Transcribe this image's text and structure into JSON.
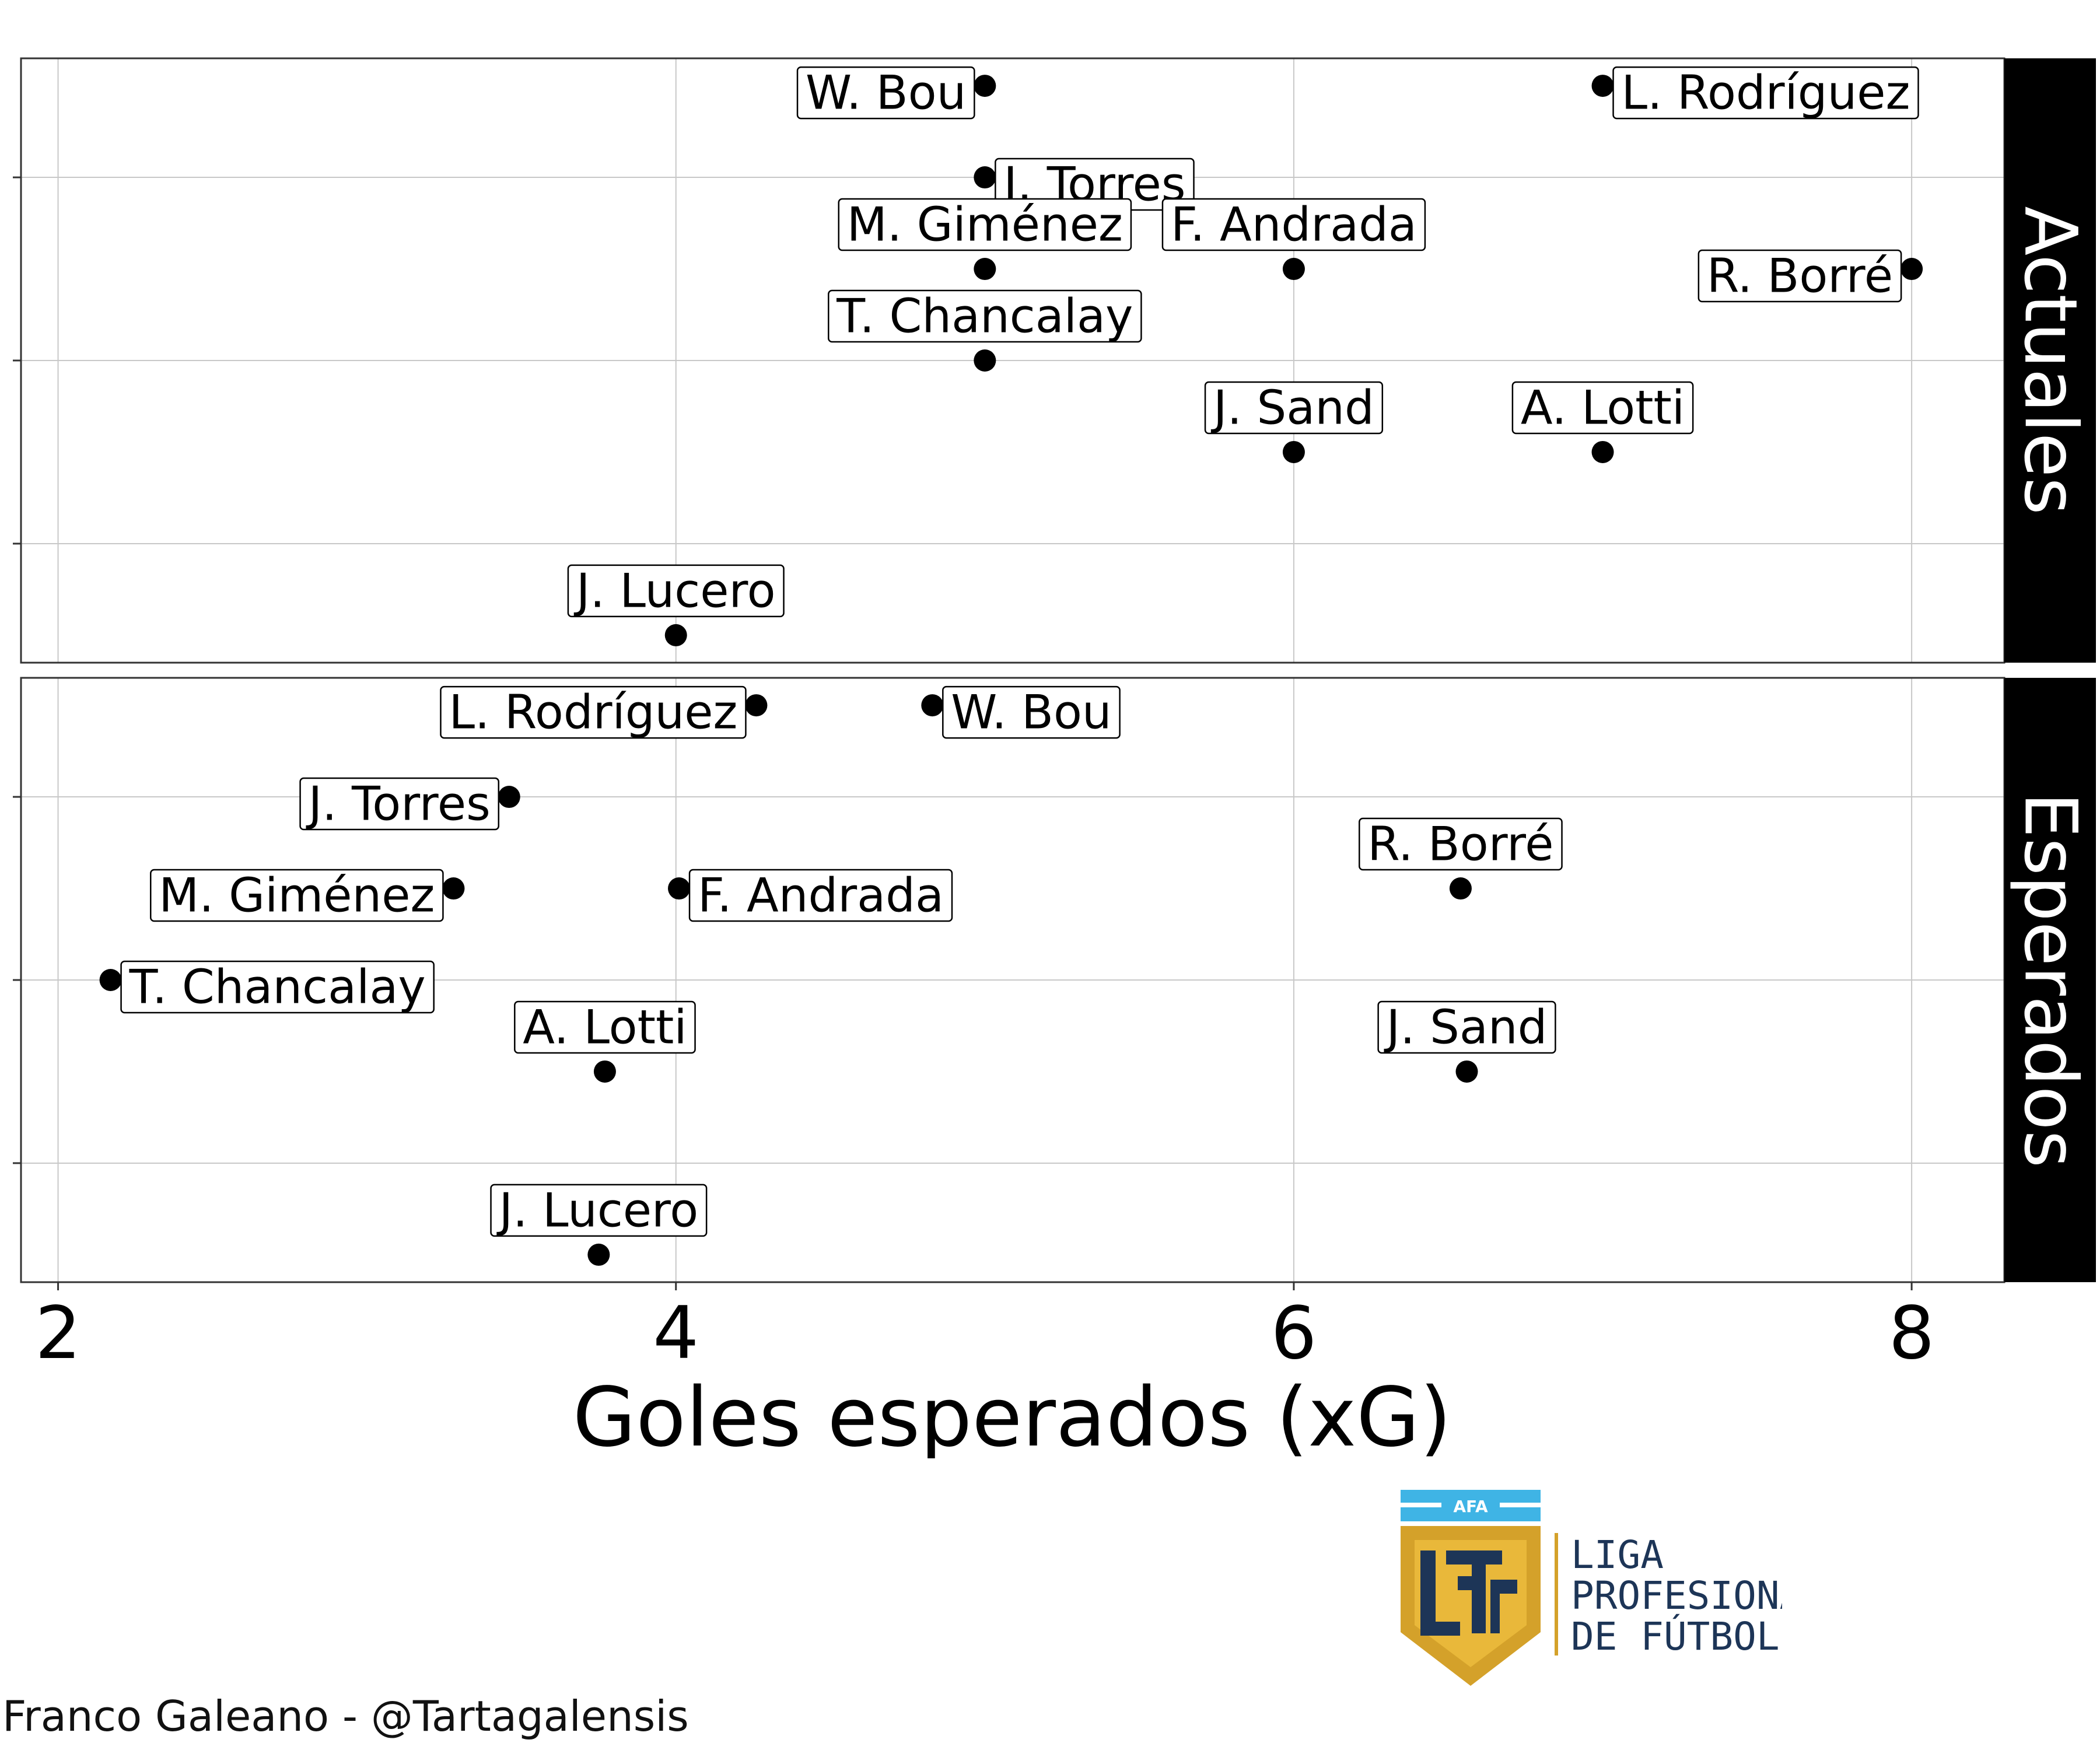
{
  "chart_data": [
    {
      "type": "scatter",
      "facet": "Actuales",
      "xlabel": "Goles esperados (xG)",
      "xlim": [
        1.88,
        8.3
      ],
      "ylim": [
        0.35,
        3.65
      ],
      "x_ticks": [
        "2",
        "4",
        "6",
        "8"
      ],
      "grid": true,
      "points": [
        {
          "name": "W. Bou",
          "x": 5.0,
          "y": 3.5
        },
        {
          "name": "L. Rodríguez",
          "x": 7.0,
          "y": 3.5
        },
        {
          "name": "J. Torres",
          "x": 5.0,
          "y": 3.0
        },
        {
          "name": "M. Giménez",
          "x": 5.0,
          "y": 2.5
        },
        {
          "name": "F. Andrada",
          "x": 6.0,
          "y": 2.5
        },
        {
          "name": "R. Borré",
          "x": 8.0,
          "y": 2.5
        },
        {
          "name": "T. Chancalay",
          "x": 5.0,
          "y": 2.0
        },
        {
          "name": "J. Sand",
          "x": 6.0,
          "y": 1.5
        },
        {
          "name": "A. Lotti",
          "x": 7.0,
          "y": 1.5
        },
        {
          "name": "J. Lucero",
          "x": 4.0,
          "y": 0.5
        }
      ]
    },
    {
      "type": "scatter",
      "facet": "Esperados",
      "xlabel": "Goles esperados (xG)",
      "xlim": [
        1.88,
        8.3
      ],
      "ylim": [
        0.35,
        3.65
      ],
      "x_ticks": [
        "2",
        "4",
        "6",
        "8"
      ],
      "grid": true,
      "points": [
        {
          "name": "L. Rodríguez",
          "x": 4.26,
          "y": 3.5
        },
        {
          "name": "W. Bou",
          "x": 4.83,
          "y": 3.5
        },
        {
          "name": "J. Torres",
          "x": 3.46,
          "y": 3.0
        },
        {
          "name": "M. Giménez",
          "x": 3.28,
          "y": 2.5
        },
        {
          "name": "F. Andrada",
          "x": 4.01,
          "y": 2.5
        },
        {
          "name": "R. Borré",
          "x": 6.54,
          "y": 2.5
        },
        {
          "name": "T. Chancalay",
          "x": 2.17,
          "y": 2.0
        },
        {
          "name": "A. Lotti",
          "x": 3.77,
          "y": 1.5
        },
        {
          "name": "J. Sand",
          "x": 6.56,
          "y": 1.5
        },
        {
          "name": "J. Lucero",
          "x": 3.75,
          "y": 0.5
        }
      ]
    }
  ],
  "credit": "Franco Galeano - @Tartagalensis",
  "logo": {
    "badge_text": "AFA",
    "line1": "LIGA",
    "line2": "PROFESIONAL",
    "line3": "DE FÚTBOL",
    "colors": {
      "gold": "#d4a12a",
      "navy": "#1d3557",
      "sky": "#3fb4e5"
    }
  }
}
